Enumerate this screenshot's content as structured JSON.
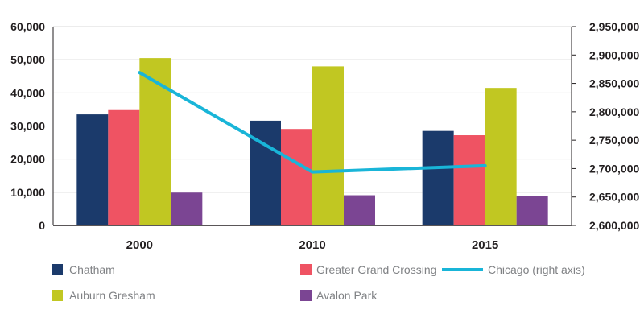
{
  "chart_data": {
    "type": "bar",
    "title": "",
    "xlabel": "",
    "ylabel": "",
    "categories": [
      "2000",
      "2010",
      "2015"
    ],
    "series": [
      {
        "name": "Chatham",
        "color": "#1b3a6b",
        "values": [
          33500,
          31600,
          28500
        ]
      },
      {
        "name": "Greater Grand Crossing",
        "color": "#ef5363",
        "values": [
          34800,
          29100,
          27200
        ]
      },
      {
        "name": "Auburn Gresham",
        "color": "#c1c722",
        "values": [
          50500,
          48000,
          41500
        ]
      },
      {
        "name": "Avalon Park",
        "color": "#7b4593",
        "values": [
          9900,
          9100,
          8900
        ]
      }
    ],
    "line_series": {
      "name": "Chicago (right axis)",
      "color": "#19b5d8",
      "axis": "right",
      "values": [
        2869000,
        2694000,
        2705000
      ]
    },
    "ylim": [
      0,
      60000
    ],
    "yticks": [
      "0",
      "10,000",
      "20,000",
      "30,000",
      "40,000",
      "50,000",
      "60,000"
    ],
    "y2lim": [
      2600000,
      2950000
    ],
    "y2ticks": [
      "2,600,000",
      "2,650,000",
      "2,700,000",
      "2,750,000",
      "2,800,000",
      "2,850,000",
      "2,900,000",
      "2,950,000"
    ],
    "legend_position": "bottom"
  },
  "legend": {
    "chatham": "Chatham",
    "ggc": "Greater Grand Crossing",
    "chicago": "Chicago (right axis)",
    "auburn": "Auburn Gresham",
    "avalon": "Avalon Park"
  }
}
